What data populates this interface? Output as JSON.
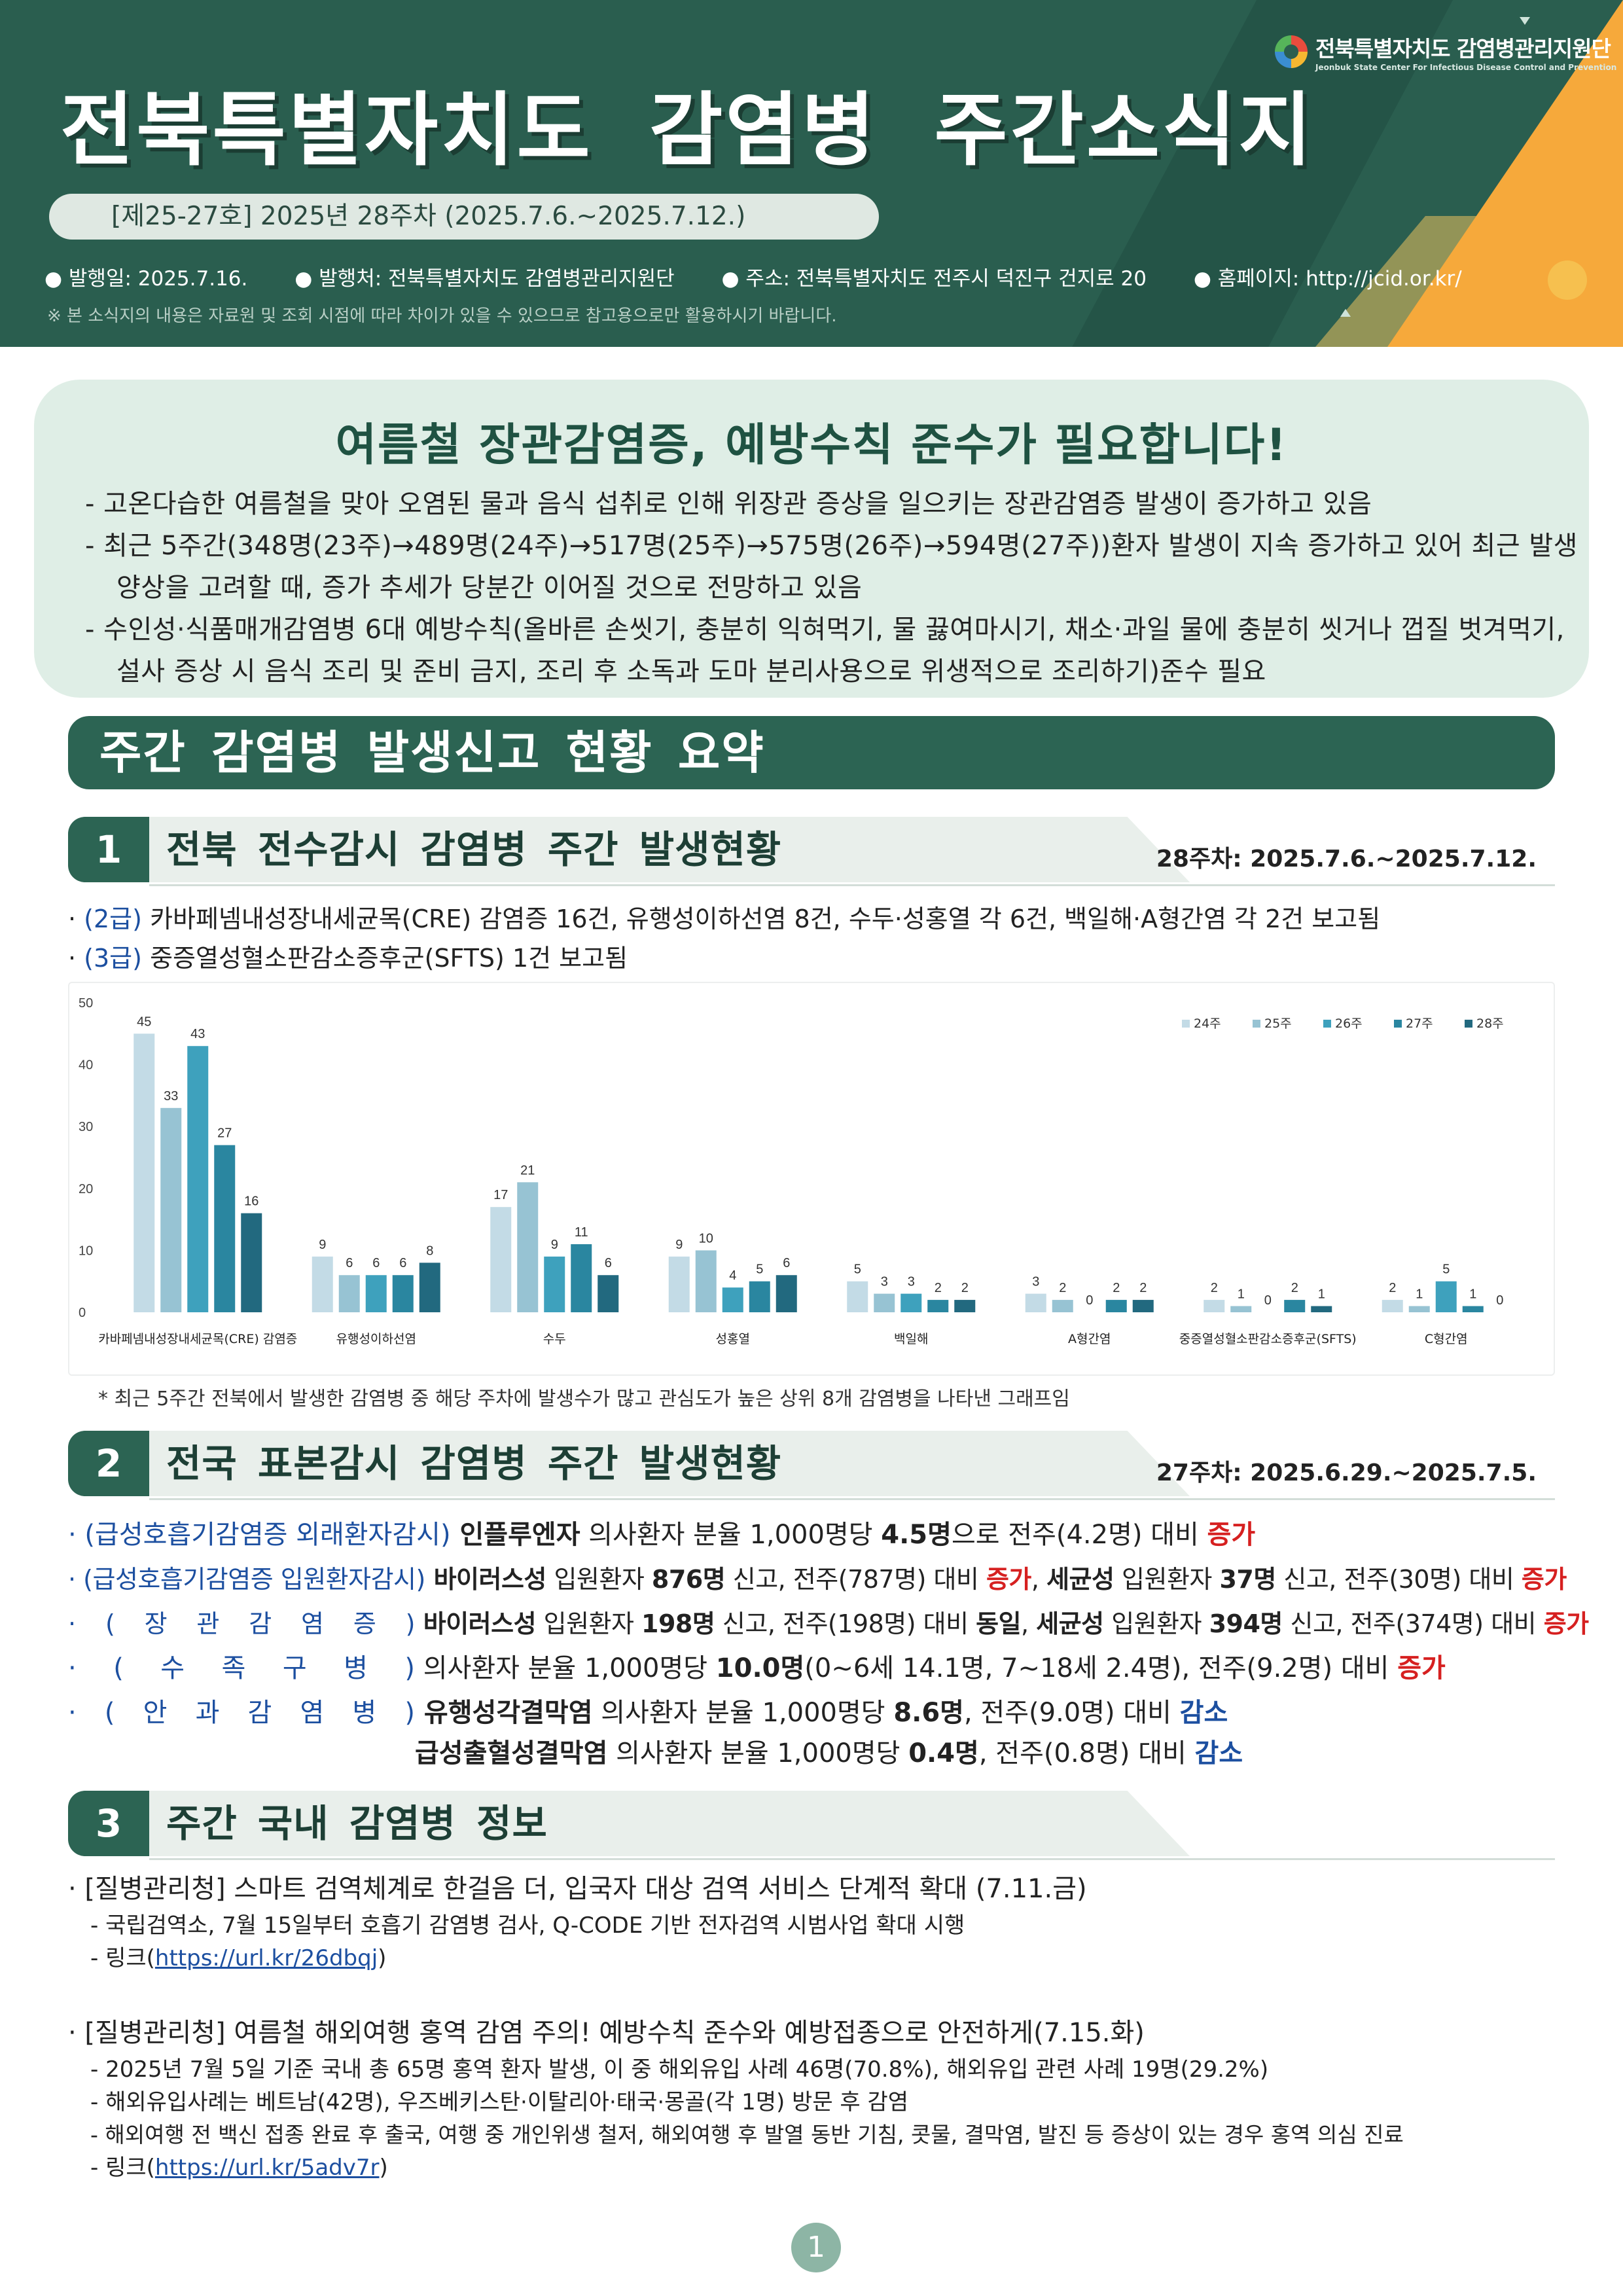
{
  "header": {
    "title": "전북특별자치도 감염병 주간소식지",
    "issue": "[제25-27호] 2025년 28주차 (2025.7.6.~2025.7.12.)",
    "meta": [
      "● 발행일: 2025.7.16.",
      "● 발행처: 전북특별자치도 감염병관리지원단",
      "● 주소: 전북특별자치도 전주시 덕진구 건지로 20",
      "● 홈페이지: http://jcid.or.kr/"
    ],
    "notice": "※ 본 소식지의 내용은 자료원 및 조회 시점에 따라 차이가 있을 수 있으므로 참고용으로만 활용하시기 바랍니다.",
    "logo_kr": "전북특별자치도 감염병관리지원단",
    "logo_en": "Jeonbuk State Center For Infectious Disease Control and Prevention"
  },
  "alert": {
    "title": "여름철 장관감염증, 예방수칙 준수가 필요합니다!",
    "bullets": [
      "고온다습한 여름철을 맞아 오염된 물과 음식 섭취로 인해 위장관 증상을 일으키는 장관감염증 발생이 증가하고 있음",
      "최근 5주간(348명(23주)→489명(24주)→517명(25주)→575명(26주)→594명(27주))환자 발생이 지속 증가하고 있어 최근 발생 양상을 고려할 때, 증가 추세가 당분간 이어질 것으로 전망하고 있음",
      "수인성·식품매개감염병 6대 예방수칙(올바른 손씻기, 충분히 익혀먹기, 물 끓여마시기, 채소·과일 물에 충분히 씻거나 껍질 벗겨먹기, 설사 증상 시 음식 조리 및 준비 금지, 조리 후 소독과 도마 분리사용으로 위생적으로 조리하기)준수 필요"
    ]
  },
  "summary_title": "주간 감염병 발생신고 현황 요약",
  "section1": {
    "num": "1",
    "title": "전북 전수감시 감염병 주간 발생현황",
    "date": "28주차: 2025.7.6.~2025.7.12.",
    "line1_label": "(2급)",
    "line1_text": "카바페넴내성장내세균목(CRE) 감염증 16건, 유행성이하선염 8건, 수두·성홍열 각 6건, 백일해·A형간염 각 2건 보고됨",
    "line2_label": "(3급)",
    "line2_text": "중증열성혈소판감소증후군(SFTS) 1건 보고됨",
    "note": "* 최근 5주간 전북에서 발생한 감염병 중 해당 주차에 발생수가 많고 관심도가 높은 상위 8개 감염병을 나타낸 그래프임"
  },
  "chart_data": {
    "type": "bar",
    "categories": [
      "카바페넴내성장내세균목(CRE) 감염증",
      "유행성이하선염",
      "수두",
      "성홍열",
      "백일해",
      "A형간염",
      "중증열성혈소판감소증후군(SFTS)",
      "C형간염"
    ],
    "series": [
      {
        "name": "24주",
        "values": [
          45,
          9,
          17,
          9,
          5,
          3,
          2,
          2
        ],
        "color": "#c3dbe6"
      },
      {
        "name": "25주",
        "values": [
          33,
          6,
          21,
          10,
          3,
          2,
          1,
          1
        ],
        "color": "#97c3d3"
      },
      {
        "name": "26주",
        "values": [
          43,
          6,
          9,
          4,
          3,
          0,
          0,
          5
        ],
        "color": "#3ea1bd"
      },
      {
        "name": "27주",
        "values": [
          27,
          6,
          11,
          5,
          2,
          2,
          2,
          1
        ],
        "color": "#2a86a0"
      },
      {
        "name": "28주",
        "values": [
          16,
          8,
          6,
          6,
          2,
          2,
          1,
          0
        ],
        "color": "#22697f"
      }
    ],
    "yticks": [
      "0",
      "10",
      "20",
      "30",
      "40",
      "50"
    ],
    "ylim": [
      0,
      50
    ],
    "grid": false,
    "legend": "top-right"
  },
  "section2": {
    "num": "2",
    "title": "전국 표본감시 감염병 주간 발생현황",
    "date": "27주차: 2025.6.29.~2025.7.5.",
    "rows": {
      "r1": {
        "label": "· (급성호흡기감염증 외래환자감시)",
        "a": " 인플루엔자",
        "b": " 의사환자 분율 1,000명당 ",
        "c": "4.5명",
        "d": "으로 전주(4.2명) 대비 ",
        "e": "증가"
      },
      "r2": {
        "label": "· (급성호흡기감염증 입원환자감시)",
        "a": " 바이러스성",
        "b": " 입원환자 ",
        "c": "876명",
        "d": " 신고, 전주(787명) 대비 ",
        "e": "증가",
        "f": ", ",
        "g": "세균성",
        "h": " 입원환자 ",
        "i": "37명",
        "j": " 신고, 전주(30명) 대비 ",
        "k": "증가"
      },
      "r3": {
        "label_chars": [
          "·",
          "(",
          "장",
          "관",
          "감",
          "염",
          "증",
          ")"
        ],
        "a": " 바이러스성",
        "b": " 입원환자 ",
        "c": "198명",
        "d": " 신고, 전주(198명) 대비 ",
        "e": "동일",
        "f": ", ",
        "g": "세균성",
        "h": " 입원환자 ",
        "i": "394명",
        "j": " 신고, 전주(374명) 대비 ",
        "k": "증가"
      },
      "r4": {
        "label_chars": [
          "·",
          "(",
          "수",
          "족",
          "구",
          "병",
          ")"
        ],
        "b": " 의사환자 분율 1,000명당 ",
        "c": "10.0명",
        "d": "(0~6세 14.1명, 7~18세 2.4명), 전주(9.2명) 대비 ",
        "e": "증가"
      },
      "r5": {
        "label_chars": [
          "·",
          "(",
          "안",
          "과",
          "감",
          "염",
          "병",
          ")"
        ],
        "a": " 유행성각결막염",
        "b": " 의사환자 분율 1,000명당 ",
        "c": "8.6명",
        "d": ", 전주(9.0명) 대비 ",
        "e": "감소"
      },
      "r6": {
        "a": "급성출혈성결막염",
        "b": " 의사환자 분율 1,000명당 ",
        "c": "0.4명",
        "d": ", 전주(0.8명) 대비 ",
        "e": "감소"
      }
    }
  },
  "section3": {
    "num": "3",
    "title": "주간 국내 감염병 정보",
    "item1": {
      "head": "· [질병관리청] 스마트 검역체계로 한걸음 더, 입국자 대상 검역 서비스 단계적 확대 (7.11.금)",
      "sub1": "- 국립검역소, 7월 15일부터 호흡기 감염병 검사, Q-CODE 기반 전자검역 시범사업 확대 시행",
      "link_prefix": "- 링크(",
      "link": "https://url.kr/26dbqj",
      "link_suffix": ")"
    },
    "item2": {
      "head": "· [질병관리청] 여름철 해외여행 홍역 감염 주의! 예방수칙 준수와 예방접종으로 안전하게(7.15.화)",
      "sub1": "- 2025년 7월 5일 기준 국내 총 65명 홍역 환자 발생, 이 중 해외유입 사례 46명(70.8%), 해외유입 관련 사례 19명(29.2%)",
      "sub2": "- 해외유입사례는 베트남(42명), 우즈베키스탄·이탈리아·태국·몽골(각 1명) 방문 후 감염",
      "sub3": "- 해외여행 전 백신 접종 완료 후 출국, 여행 중 개인위생 철저, 해외여행 후 발열 동반 기침, 콧물, 결막염, 발진 등 증상이 있는 경우 홍역 의심 진료",
      "link_prefix": "- 링크(",
      "link": "https://url.kr/5adv7r",
      "link_suffix": ")"
    }
  },
  "page_number": "1"
}
